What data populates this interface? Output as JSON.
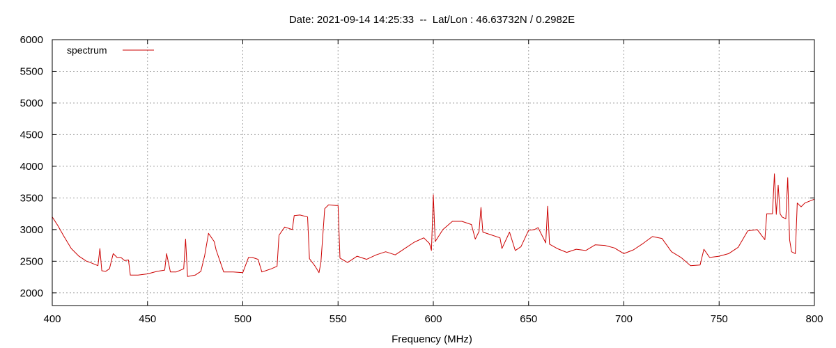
{
  "chart_data": {
    "type": "line",
    "title": "Date: 2021-09-14 14:25:33  --  Lat/Lon : 46.63732N / 0.2982E",
    "xlabel": "Frequency (MHz)",
    "ylabel": "",
    "xlim": [
      400,
      800
    ],
    "ylim": [
      1800,
      6000
    ],
    "x_ticks": [
      400,
      450,
      500,
      550,
      600,
      650,
      700,
      750,
      800
    ],
    "y_ticks": [
      2000,
      2500,
      3000,
      3500,
      4000,
      4500,
      5000,
      5500,
      6000
    ],
    "grid": true,
    "legend_position": "top-left",
    "series": [
      {
        "name": "spectrum",
        "color": "#cc0000",
        "x": [
          400,
          403,
          406,
          410,
          414,
          418,
          420,
          424,
          425,
          426,
          428,
          430,
          432,
          434,
          436,
          438,
          440,
          441,
          445,
          450,
          455,
          459,
          460,
          462,
          465,
          469,
          470,
          471,
          475,
          478,
          480,
          482,
          485,
          486,
          490,
          495,
          500,
          503,
          505,
          508,
          510,
          515,
          518,
          519,
          522,
          526,
          527,
          530,
          534,
          535,
          538,
          540,
          541,
          543,
          545,
          549,
          550,
          551,
          555,
          560,
          565,
          570,
          575,
          580,
          585,
          590,
          595,
          598,
          599,
          600,
          601,
          605,
          610,
          615,
          620,
          622,
          624,
          625,
          626,
          630,
          635,
          636,
          640,
          643,
          646,
          650,
          653,
          655,
          659,
          660,
          661,
          665,
          670,
          675,
          680,
          685,
          690,
          695,
          700,
          705,
          710,
          715,
          720,
          725,
          730,
          735,
          740,
          742,
          745,
          750,
          755,
          760,
          765,
          770,
          774,
          775,
          778,
          779,
          780,
          781,
          782,
          783,
          785,
          786,
          787,
          788,
          790,
          791,
          793,
          795,
          800
        ],
        "values": [
          3200,
          3060,
          2900,
          2700,
          2580,
          2500,
          2480,
          2430,
          2700,
          2350,
          2340,
          2380,
          2620,
          2560,
          2560,
          2510,
          2520,
          2280,
          2280,
          2300,
          2340,
          2360,
          2620,
          2330,
          2330,
          2380,
          2850,
          2260,
          2280,
          2340,
          2590,
          2940,
          2810,
          2680,
          2330,
          2330,
          2320,
          2560,
          2560,
          2530,
          2330,
          2380,
          2420,
          2910,
          3040,
          3000,
          3220,
          3230,
          3200,
          2540,
          2420,
          2320,
          2480,
          3330,
          3390,
          3380,
          3380,
          2550,
          2480,
          2580,
          2530,
          2600,
          2650,
          2600,
          2700,
          2800,
          2870,
          2780,
          2670,
          3550,
          2810,
          3000,
          3130,
          3130,
          3080,
          2850,
          2970,
          3350,
          2960,
          2920,
          2870,
          2700,
          2960,
          2670,
          2730,
          2990,
          3000,
          3030,
          2790,
          3370,
          2770,
          2700,
          2640,
          2690,
          2670,
          2760,
          2750,
          2710,
          2620,
          2680,
          2780,
          2890,
          2860,
          2650,
          2560,
          2430,
          2440,
          2690,
          2560,
          2580,
          2620,
          2720,
          2980,
          3000,
          2840,
          3250,
          3250,
          3880,
          3240,
          3700,
          3250,
          3200,
          3170,
          3820,
          2840,
          2650,
          2620,
          3420,
          3360,
          3420,
          3480
        ]
      }
    ]
  }
}
